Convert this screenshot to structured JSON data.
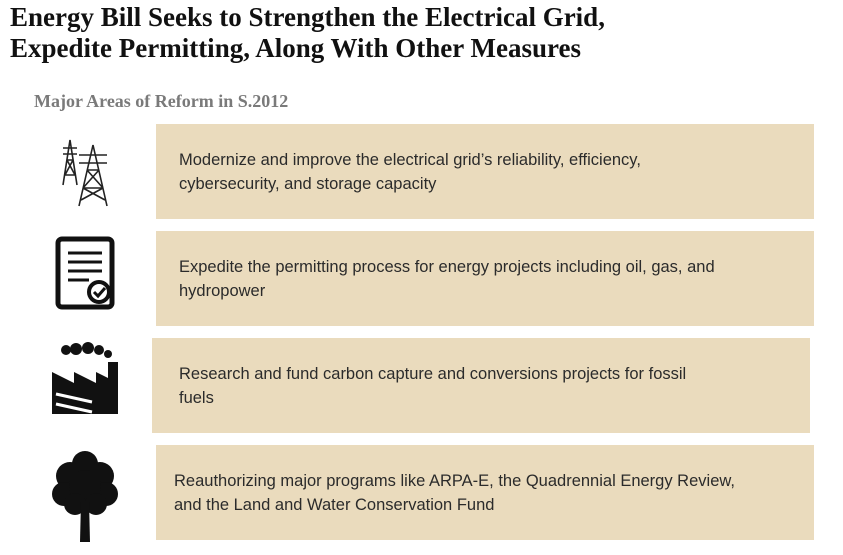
{
  "header": {
    "title": [
      "Energy Bill Seeks to Strengthen the Electrical Grid,",
      "Expedite Permitting, Along With Other Measures"
    ],
    "subtitle": "Major Areas of Reform in S.2012"
  },
  "items": [
    {
      "lines": [
        "Modernize and improve the electrical grid’s reliability, efficiency,",
        "cybersecurity, and storage capacity"
      ]
    },
    {
      "lines": [
        "Expedite the permitting process for energy projects including oil, gas, and",
        "hydropower"
      ]
    },
    {
      "lines": [
        "Research and fund carbon capture and conversions projects for fossil",
        "fuels"
      ]
    },
    {
      "lines": [
        "Reauthorizing major programs like ARPA-E, the Quadrennial Energy Review,",
        "and the Land and Water Conservation Fund"
      ]
    }
  ]
}
